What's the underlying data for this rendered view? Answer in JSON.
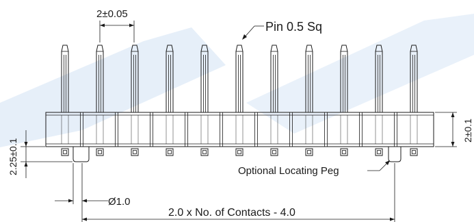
{
  "diagram": {
    "pin_count": 11,
    "labels": {
      "pitch": "2±0.05",
      "pin_size": "Pin 0.5 Sq",
      "body_height": "2±0.1",
      "peg_height": "2.25±0.1",
      "peg_diameter": "Ø1.0",
      "overall_length": "2.0 x No. of Contacts - 4.0",
      "peg_note": "Optional Locating Peg"
    },
    "colors": {
      "line": "#1a1a1a",
      "watermark": "#dbe8f6"
    }
  }
}
